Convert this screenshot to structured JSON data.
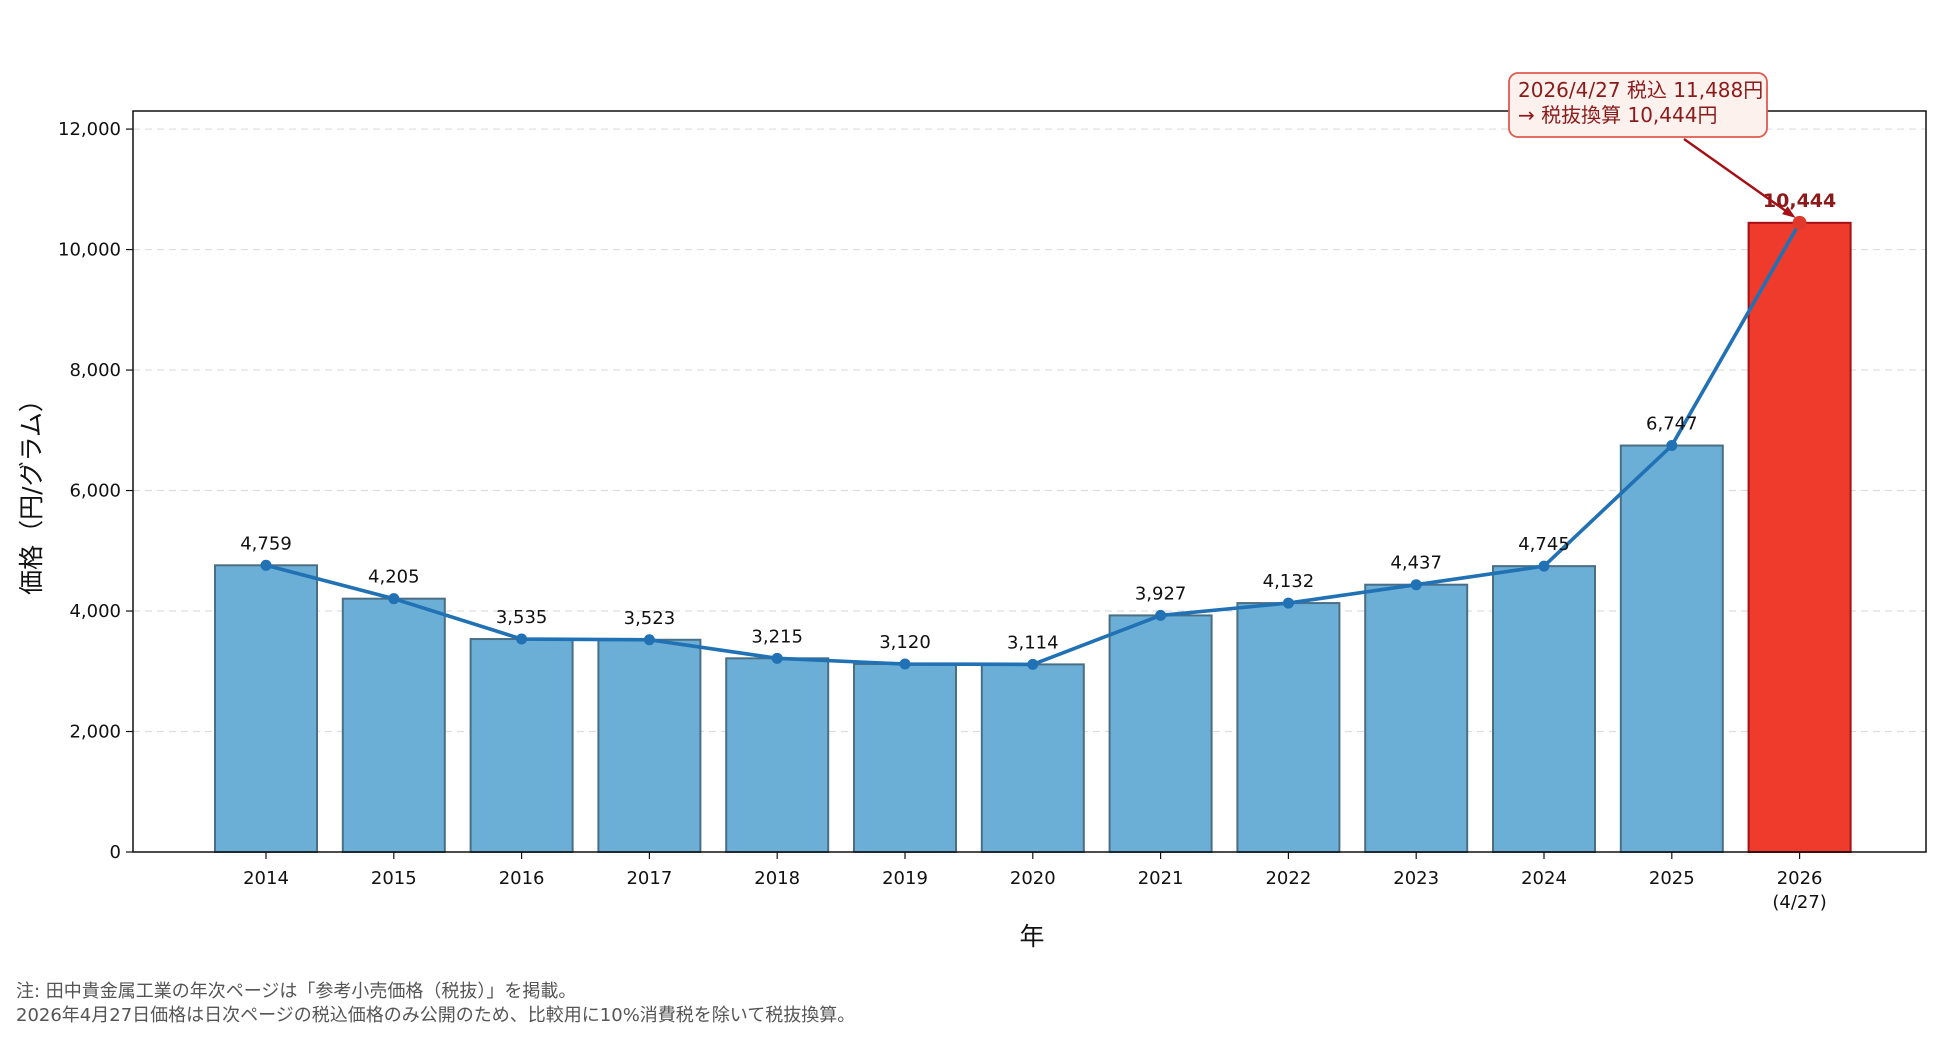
{
  "chart_data": {
    "type": "bar",
    "xlabel": "年",
    "ylabel": "価格（円/グラム）",
    "categories": [
      "2014",
      "2015",
      "2016",
      "2017",
      "2018",
      "2019",
      "2020",
      "2021",
      "2022",
      "2023",
      "2024",
      "2025",
      "2026\n(4/27)"
    ],
    "values": [
      4759,
      4205,
      3535,
      3523,
      3215,
      3120,
      3114,
      3927,
      4132,
      4437,
      4745,
      6747,
      10444
    ],
    "data_labels": [
      "4,759",
      "4,205",
      "3,535",
      "3,523",
      "3,215",
      "3,120",
      "3,114",
      "3,927",
      "4,132",
      "4,437",
      "4,745",
      "6,747",
      "10,444"
    ],
    "overlay_line": true,
    "highlight_index": 12,
    "ylim": [
      0,
      12300
    ],
    "yticks": [
      0,
      2000,
      4000,
      6000,
      8000,
      10000,
      12000
    ],
    "ytick_labels": [
      "0",
      "2,000",
      "4,000",
      "6,000",
      "8,000",
      "10,000",
      "12,000"
    ],
    "grid": "y-dashed",
    "annotation": {
      "lines": [
        "2026/4/27 税込 11,488円",
        "→ 税抜換算 10,444円"
      ],
      "target_index": 12
    }
  },
  "colors": {
    "bar": "#6baed6",
    "bar_edge": "#4a6f85",
    "highlight_bar": "#ef3b2c",
    "highlight_edge": "#a50f15",
    "line": "#2171b5",
    "highlight_point": "#e0392b",
    "annotation_text": "#8b1a1a",
    "annotation_border": "#e05a4f",
    "annotation_fill": "#fdf1ee",
    "grid": "#dddddd"
  },
  "notes": {
    "line1": "注: 田中貴金属工業の年次ページは「参考小売価格（税抜）」を掲載。",
    "line2": "2026年4月27日価格は日次ページの税込価格のみ公開のため、比較用に10%消費税を除いて税抜換算。"
  }
}
